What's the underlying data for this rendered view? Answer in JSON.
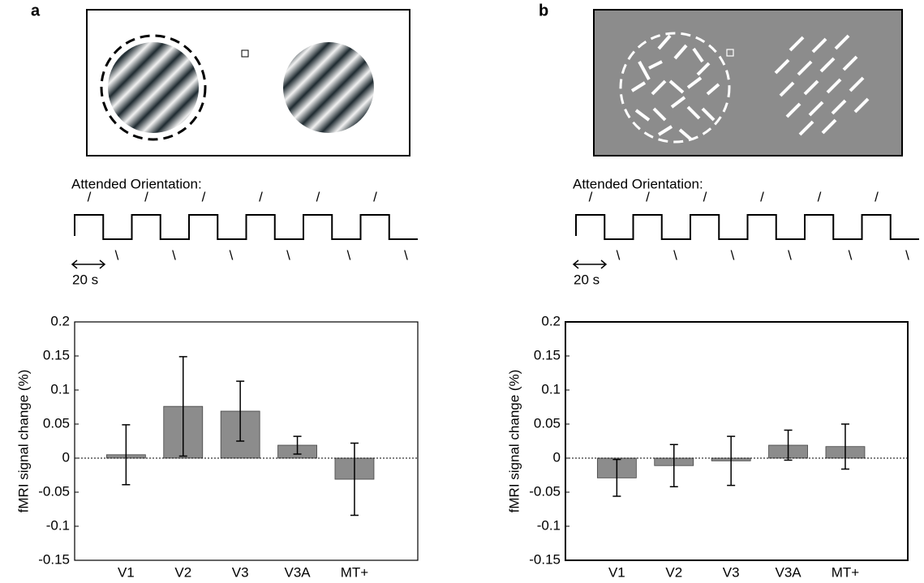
{
  "panels": [
    {
      "label": "a",
      "timecourse_label": "Attended Orientation:",
      "high_mark": "/",
      "low_mark": "\\",
      "scale_label": "20 s"
    },
    {
      "label": "b",
      "timecourse_label": "Attended Orientation:",
      "high_mark": "/",
      "low_mark": "\\",
      "scale_label": "20 s"
    }
  ],
  "chart_data": [
    {
      "type": "bar",
      "ylabel": "fMRI signal change (%)",
      "categories": [
        "V1",
        "V2",
        "V3",
        "V3A",
        "MT+"
      ],
      "values": [
        0.005,
        0.076,
        0.069,
        0.019,
        -0.031
      ],
      "errors": [
        0.044,
        0.073,
        0.044,
        0.013,
        0.053
      ],
      "color": "#8c8c8c",
      "ylim": [
        -0.15,
        0.2
      ],
      "yticks": [
        -0.15,
        -0.1,
        -0.05,
        0,
        0.05,
        0.1,
        0.15,
        0.2
      ],
      "zero_line": true
    },
    {
      "type": "bar",
      "ylabel": "fMRI signal change (%)",
      "categories": [
        "V1",
        "V2",
        "V3",
        "V3A",
        "MT+"
      ],
      "values": [
        -0.029,
        -0.011,
        -0.004,
        0.019,
        0.017
      ],
      "errors": [
        0.027,
        0.031,
        0.036,
        0.022,
        0.033
      ],
      "color": "#8c8c8c",
      "ylim": [
        -0.15,
        0.2
      ],
      "yticks": [
        -0.15,
        -0.1,
        -0.05,
        0,
        0.05,
        0.1,
        0.15,
        0.2
      ],
      "zero_line": true
    }
  ]
}
